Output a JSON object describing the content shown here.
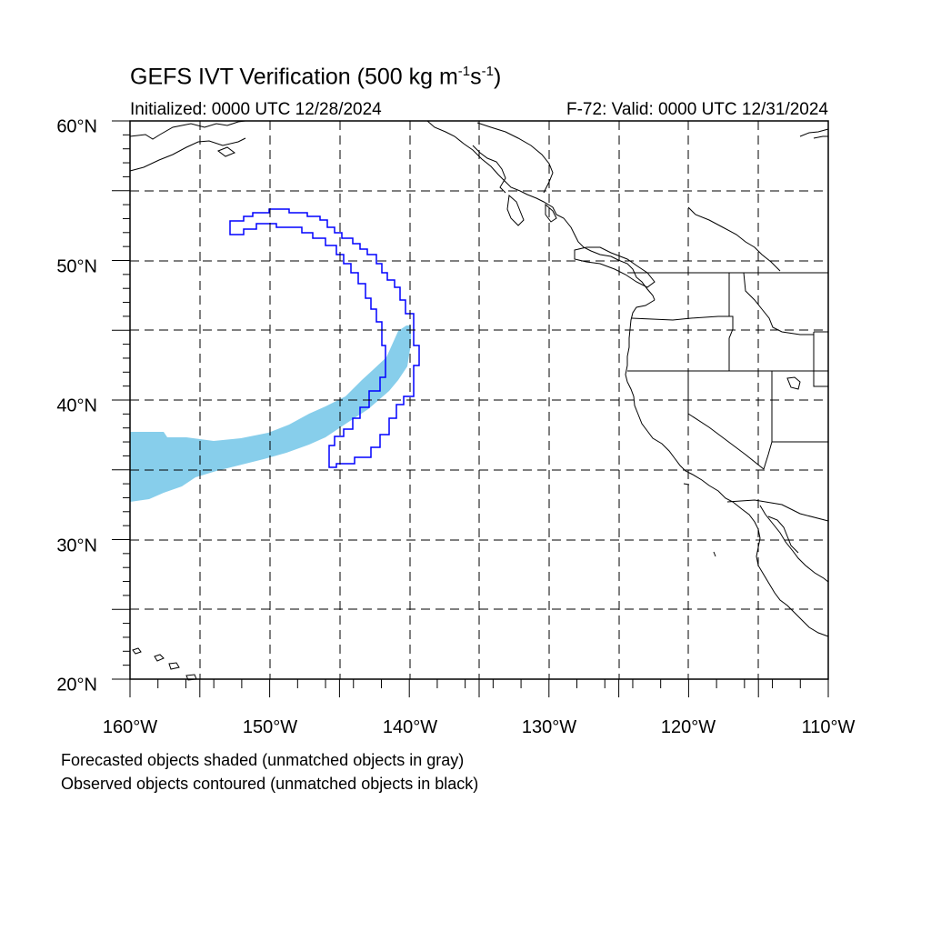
{
  "title": {
    "prefix": "GEFS IVT Verification (500 kg m",
    "exp1": "-1",
    "mid": "s",
    "exp2": "-1",
    "suffix": ")"
  },
  "initialized": "Initialized: 0000 UTC 12/28/2024",
  "valid": "F-72: Valid: 0000 UTC 12/31/2024",
  "notes": {
    "forecast": "Forecasted objects shaded (unmatched objects in gray)",
    "observed": "Observed objects contoured (unmatched objects in black)"
  },
  "map": {
    "lon_range": [
      -160,
      -110
    ],
    "lat_range": [
      20,
      60
    ],
    "lat_labels": [
      "60°N",
      "50°N",
      "40°N",
      "30°N",
      "20°N"
    ],
    "lon_labels": [
      "160°W",
      "150°W",
      "140°W",
      "130°W",
      "120°W",
      "110°W"
    ],
    "grid_lons": [
      -155,
      -150,
      -145,
      -140,
      -135,
      -130,
      -125,
      -120,
      -115
    ],
    "grid_lats": [
      25,
      30,
      35,
      40,
      45,
      50,
      55
    ],
    "forecast_color": "#87ceeb",
    "observed_color": "#0000ff"
  }
}
